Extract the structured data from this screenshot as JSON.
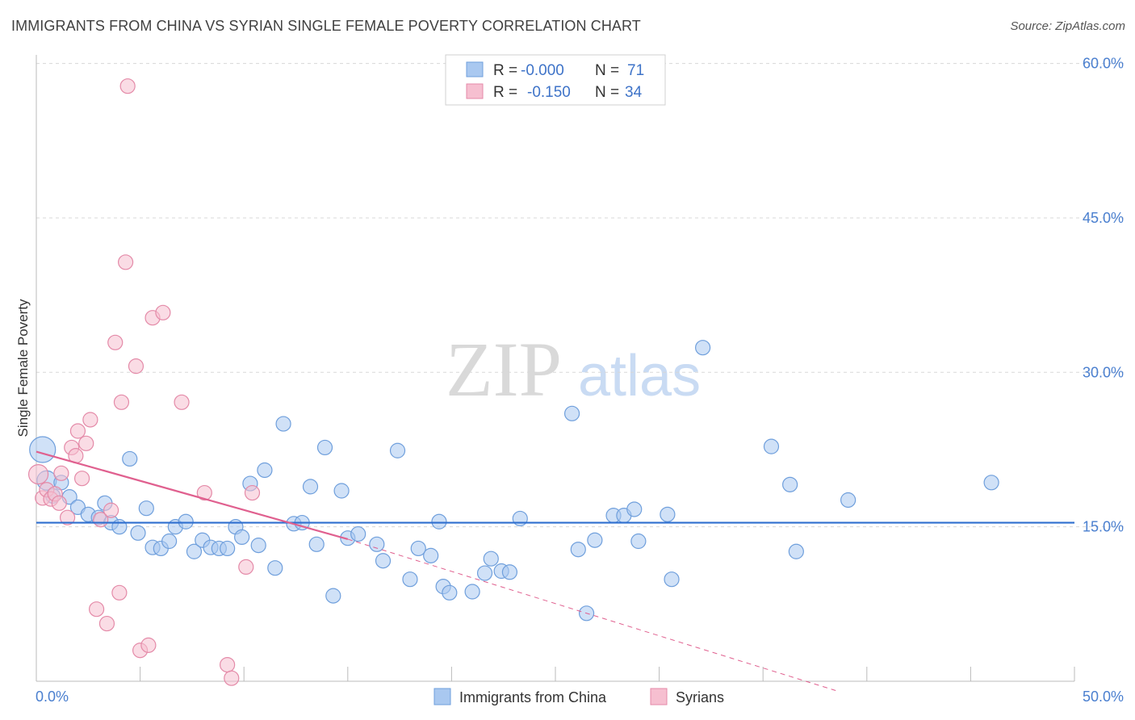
{
  "header": {
    "title": "IMMIGRANTS FROM CHINA VS SYRIAN SINGLE FEMALE POVERTY CORRELATION CHART",
    "source": "Source: ZipAtlas.com"
  },
  "watermark": {
    "zip": "ZIP",
    "atlas": "atlas"
  },
  "colors": {
    "blue_fill": "#a9c8f0",
    "blue_stroke": "#6f9fdc",
    "blue_line": "#2f6fcf",
    "pink_fill": "#f6bfd0",
    "pink_stroke": "#e48aa8",
    "pink_line": "#e0608f",
    "grid": "#d8d8d8",
    "tick_label": "#4a7fcf"
  },
  "legend": {
    "rows": [
      {
        "r_label": "R =",
        "r_value": "-0.000",
        "n_label": "N =",
        "n_value": "71"
      },
      {
        "r_label": "R =",
        "r_value": "-0.150",
        "n_label": "N =",
        "n_value": "34"
      }
    ]
  },
  "chart_data": {
    "type": "scatter",
    "title": "IMMIGRANTS FROM CHINA VS SYRIAN SINGLE FEMALE POVERTY CORRELATION CHART",
    "xlabel": "",
    "ylabel": "Single Female Poverty",
    "xlim": [
      0,
      50
    ],
    "ylim": [
      0,
      60
    ],
    "x_tick_labels": [
      "0.0%",
      "50.0%"
    ],
    "y_ticks": [
      15,
      30,
      45,
      60
    ],
    "y_tick_labels": [
      "15.0%",
      "30.0%",
      "45.0%",
      "60.0%"
    ],
    "series": [
      {
        "name": "Immigrants from China",
        "color": "blue",
        "R": -0.0,
        "N": 71,
        "trend": {
          "x": [
            0,
            50
          ],
          "y": [
            15.4,
            15.4
          ]
        },
        "points": [
          {
            "x": 0.3,
            "y": 22.5,
            "s": 3
          },
          {
            "x": 0.5,
            "y": 19.5,
            "s": 2
          },
          {
            "x": 0.8,
            "y": 18.0,
            "s": 1
          },
          {
            "x": 1.2,
            "y": 19.3,
            "s": 1
          },
          {
            "x": 1.6,
            "y": 17.9,
            "s": 1
          },
          {
            "x": 2.0,
            "y": 16.9,
            "s": 1
          },
          {
            "x": 2.5,
            "y": 16.2,
            "s": 1
          },
          {
            "x": 3.0,
            "y": 15.9,
            "s": 1
          },
          {
            "x": 3.3,
            "y": 17.3,
            "s": 1
          },
          {
            "x": 3.6,
            "y": 15.4,
            "s": 1
          },
          {
            "x": 4.0,
            "y": 15.0,
            "s": 1
          },
          {
            "x": 4.5,
            "y": 21.6,
            "s": 1
          },
          {
            "x": 4.9,
            "y": 14.4,
            "s": 1
          },
          {
            "x": 5.3,
            "y": 16.8,
            "s": 1
          },
          {
            "x": 5.6,
            "y": 13.0,
            "s": 1
          },
          {
            "x": 6.0,
            "y": 12.9,
            "s": 1
          },
          {
            "x": 6.4,
            "y": 13.6,
            "s": 1
          },
          {
            "x": 6.7,
            "y": 15.0,
            "s": 1
          },
          {
            "x": 7.2,
            "y": 15.5,
            "s": 1
          },
          {
            "x": 7.6,
            "y": 12.6,
            "s": 1
          },
          {
            "x": 8.0,
            "y": 13.7,
            "s": 1
          },
          {
            "x": 8.4,
            "y": 13.0,
            "s": 1
          },
          {
            "x": 8.8,
            "y": 12.9,
            "s": 1
          },
          {
            "x": 9.2,
            "y": 12.9,
            "s": 1
          },
          {
            "x": 9.6,
            "y": 15.0,
            "s": 1
          },
          {
            "x": 9.9,
            "y": 14.0,
            "s": 1
          },
          {
            "x": 10.3,
            "y": 19.2,
            "s": 1
          },
          {
            "x": 10.7,
            "y": 13.2,
            "s": 1
          },
          {
            "x": 11.0,
            "y": 20.5,
            "s": 1
          },
          {
            "x": 11.5,
            "y": 11.0,
            "s": 1
          },
          {
            "x": 11.9,
            "y": 25.0,
            "s": 1
          },
          {
            "x": 12.4,
            "y": 15.3,
            "s": 1
          },
          {
            "x": 12.8,
            "y": 15.4,
            "s": 1
          },
          {
            "x": 13.2,
            "y": 18.9,
            "s": 1
          },
          {
            "x": 13.5,
            "y": 13.3,
            "s": 1
          },
          {
            "x": 13.9,
            "y": 22.7,
            "s": 1
          },
          {
            "x": 14.3,
            "y": 8.3,
            "s": 1
          },
          {
            "x": 14.7,
            "y": 18.5,
            "s": 1
          },
          {
            "x": 15.0,
            "y": 13.9,
            "s": 1
          },
          {
            "x": 15.5,
            "y": 14.3,
            "s": 1
          },
          {
            "x": 16.4,
            "y": 13.3,
            "s": 1
          },
          {
            "x": 16.7,
            "y": 11.7,
            "s": 1
          },
          {
            "x": 17.4,
            "y": 22.4,
            "s": 1
          },
          {
            "x": 18.0,
            "y": 9.9,
            "s": 1
          },
          {
            "x": 18.4,
            "y": 12.9,
            "s": 1
          },
          {
            "x": 19.0,
            "y": 12.2,
            "s": 1
          },
          {
            "x": 19.4,
            "y": 15.5,
            "s": 1
          },
          {
            "x": 19.6,
            "y": 9.2,
            "s": 1
          },
          {
            "x": 19.9,
            "y": 8.6,
            "s": 1
          },
          {
            "x": 21.0,
            "y": 8.7,
            "s": 1
          },
          {
            "x": 21.6,
            "y": 10.5,
            "s": 1
          },
          {
            "x": 21.9,
            "y": 11.9,
            "s": 1
          },
          {
            "x": 22.4,
            "y": 10.7,
            "s": 1
          },
          {
            "x": 22.8,
            "y": 10.6,
            "s": 1
          },
          {
            "x": 23.3,
            "y": 15.8,
            "s": 1
          },
          {
            "x": 25.8,
            "y": 26.0,
            "s": 1
          },
          {
            "x": 26.1,
            "y": 12.8,
            "s": 1
          },
          {
            "x": 26.5,
            "y": 6.6,
            "s": 1
          },
          {
            "x": 26.9,
            "y": 13.7,
            "s": 1
          },
          {
            "x": 27.8,
            "y": 16.1,
            "s": 1
          },
          {
            "x": 28.3,
            "y": 16.1,
            "s": 1
          },
          {
            "x": 28.8,
            "y": 16.7,
            "s": 1
          },
          {
            "x": 29.0,
            "y": 13.6,
            "s": 1
          },
          {
            "x": 30.4,
            "y": 16.2,
            "s": 1
          },
          {
            "x": 30.6,
            "y": 9.9,
            "s": 1
          },
          {
            "x": 32.1,
            "y": 32.4,
            "s": 1
          },
          {
            "x": 35.4,
            "y": 22.8,
            "s": 1
          },
          {
            "x": 36.3,
            "y": 19.1,
            "s": 1
          },
          {
            "x": 36.6,
            "y": 12.6,
            "s": 1
          },
          {
            "x": 39.1,
            "y": 17.6,
            "s": 1
          },
          {
            "x": 46.0,
            "y": 19.3,
            "s": 1
          }
        ]
      },
      {
        "name": "Syrians",
        "color": "pink",
        "R": -0.15,
        "N": 34,
        "trend": {
          "x": [
            0,
            15
          ],
          "y": [
            22.3,
            13.8
          ]
        },
        "trend_dashed": {
          "x": [
            15,
            38.5
          ],
          "y": [
            13.8,
            -0.9
          ]
        },
        "points": [
          {
            "x": 0.1,
            "y": 20.1,
            "s": 2
          },
          {
            "x": 0.3,
            "y": 17.8,
            "s": 1
          },
          {
            "x": 0.5,
            "y": 18.6,
            "s": 1
          },
          {
            "x": 0.7,
            "y": 17.7,
            "s": 1
          },
          {
            "x": 0.9,
            "y": 18.2,
            "s": 1
          },
          {
            "x": 1.2,
            "y": 20.2,
            "s": 1
          },
          {
            "x": 1.5,
            "y": 15.9,
            "s": 1
          },
          {
            "x": 1.7,
            "y": 22.7,
            "s": 1
          },
          {
            "x": 1.9,
            "y": 21.9,
            "s": 1
          },
          {
            "x": 2.0,
            "y": 24.3,
            "s": 1
          },
          {
            "x": 2.2,
            "y": 19.7,
            "s": 1
          },
          {
            "x": 2.4,
            "y": 23.1,
            "s": 1
          },
          {
            "x": 2.6,
            "y": 25.4,
            "s": 1
          },
          {
            "x": 2.9,
            "y": 7.0,
            "s": 1
          },
          {
            "x": 3.1,
            "y": 15.7,
            "s": 1
          },
          {
            "x": 3.4,
            "y": 5.6,
            "s": 1
          },
          {
            "x": 3.6,
            "y": 16.6,
            "s": 1
          },
          {
            "x": 3.8,
            "y": 32.9,
            "s": 1
          },
          {
            "x": 4.0,
            "y": 8.6,
            "s": 1
          },
          {
            "x": 4.1,
            "y": 27.1,
            "s": 1
          },
          {
            "x": 4.3,
            "y": 40.7,
            "s": 1
          },
          {
            "x": 4.4,
            "y": 57.8,
            "s": 1
          },
          {
            "x": 4.8,
            "y": 30.6,
            "s": 1
          },
          {
            "x": 5.0,
            "y": 3.0,
            "s": 1
          },
          {
            "x": 5.4,
            "y": 3.5,
            "s": 1
          },
          {
            "x": 5.6,
            "y": 35.3,
            "s": 1
          },
          {
            "x": 6.1,
            "y": 35.8,
            "s": 1
          },
          {
            "x": 7.0,
            "y": 27.1,
            "s": 1
          },
          {
            "x": 8.1,
            "y": 18.3,
            "s": 1
          },
          {
            "x": 9.2,
            "y": 1.6,
            "s": 1
          },
          {
            "x": 9.4,
            "y": 0.3,
            "s": 1
          },
          {
            "x": 10.1,
            "y": 11.1,
            "s": 1
          },
          {
            "x": 10.4,
            "y": 18.3,
            "s": 1
          },
          {
            "x": 1.1,
            "y": 17.3,
            "s": 1
          }
        ]
      }
    ]
  },
  "bottom_legend": {
    "items": [
      {
        "label": "Immigrants from China"
      },
      {
        "label": "Syrians"
      }
    ]
  }
}
